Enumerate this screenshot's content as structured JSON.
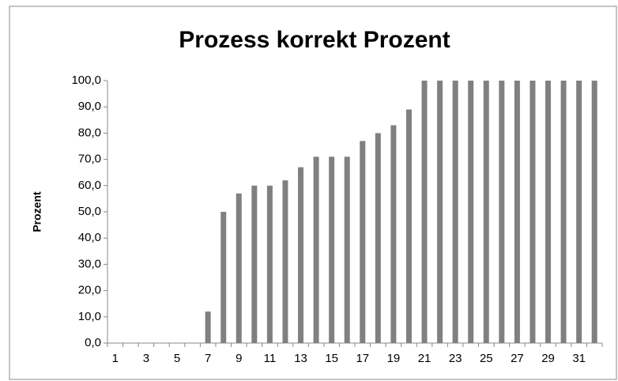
{
  "chart_data": {
    "type": "bar",
    "title": "Prozess korrekt Prozent",
    "y_label": "Prozent",
    "categories": [
      "1",
      null,
      "3",
      null,
      "5",
      null,
      "7",
      null,
      "9",
      null,
      "11",
      null,
      "13",
      null,
      "15",
      null,
      "17",
      null,
      "19",
      null,
      "21",
      null,
      "23",
      null,
      "25",
      null,
      "27",
      null,
      "29",
      null,
      "31",
      null
    ],
    "values": [
      0,
      0,
      0,
      0,
      0,
      0,
      12,
      50,
      57,
      60,
      60,
      62,
      67,
      71,
      71,
      71,
      77,
      80,
      83,
      89,
      100,
      100,
      100,
      100,
      100,
      100,
      100,
      100,
      100,
      100,
      100,
      100
    ],
    "color": "#808080",
    "ylim": [
      0,
      100
    ],
    "yticks": [
      {
        "value": 0,
        "label": "0,0"
      },
      {
        "value": 10,
        "label": "10,0"
      },
      {
        "value": 20,
        "label": "20,0"
      },
      {
        "value": 30,
        "label": "30,0"
      },
      {
        "value": 40,
        "label": "40,0"
      },
      {
        "value": 50,
        "label": "50,0"
      },
      {
        "value": 60,
        "label": "60,0"
      },
      {
        "value": 70,
        "label": "70,0"
      },
      {
        "value": 80,
        "label": "80,0"
      },
      {
        "value": 90,
        "label": "90,0"
      },
      {
        "value": 100,
        "label": "100,0"
      }
    ]
  }
}
